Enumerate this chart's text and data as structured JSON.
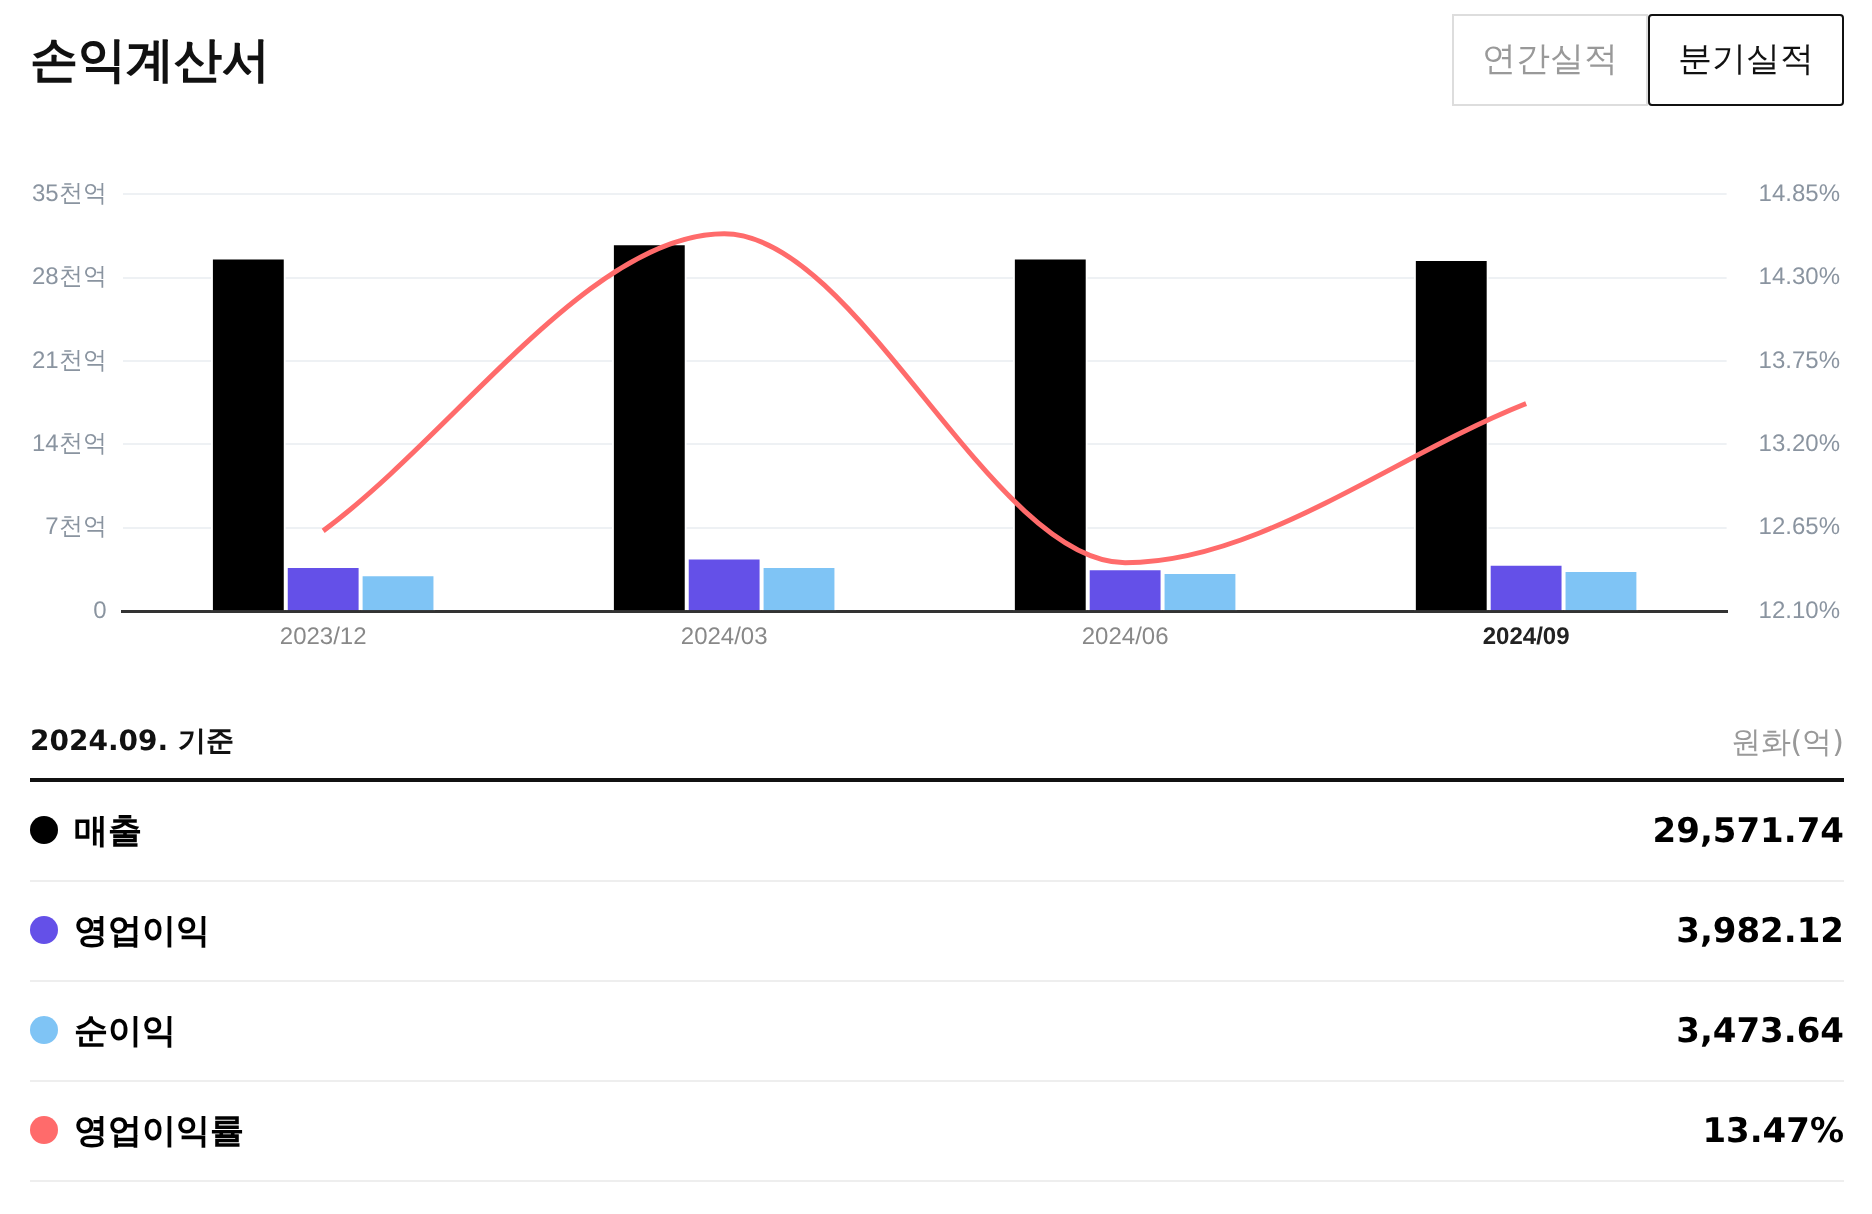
{
  "chart_data": {
    "type": "bar",
    "title": "손익계산서",
    "categories": [
      "2023/12",
      "2024/03",
      "2024/06",
      "2024/09"
    ],
    "series": [
      {
        "name": "매출",
        "color": "#000000",
        "values": [
          29.7,
          30.9,
          29.7,
          29.57
        ]
      },
      {
        "name": "영업이익",
        "color": "#6450e8",
        "values": [
          3.8,
          4.5,
          3.6,
          3.98
        ]
      },
      {
        "name": "순이익",
        "color": "#7fc4f5",
        "values": [
          3.1,
          3.8,
          3.3,
          3.47
        ]
      },
      {
        "name": "영업이익률",
        "type": "line",
        "axis": "y2",
        "color": "#ff6b6b",
        "values": [
          12.63,
          14.59,
          12.42,
          13.47
        ]
      }
    ],
    "ylim": [
      0,
      35
    ],
    "yticks": [
      0,
      {
        "value": 7,
        "label": "7천억"
      },
      {
        "value": 14,
        "label": "14천억"
      },
      {
        "value": 21,
        "label": "21천억"
      },
      {
        "value": 28,
        "label": "28천억"
      },
      {
        "value": 35,
        "label": "35천억"
      }
    ],
    "y2lim": [
      12.1,
      14.85
    ],
    "y2ticks": [
      {
        "value": 12.1,
        "label": "12.10%"
      },
      {
        "value": 12.65,
        "label": "12.65%"
      },
      {
        "value": 13.2,
        "label": "13.20%"
      },
      {
        "value": 13.75,
        "label": "13.75%"
      },
      {
        "value": 14.3,
        "label": "14.30%"
      },
      {
        "value": 14.85,
        "label": "14.85%"
      }
    ],
    "grid": "y",
    "legend": "bottom",
    "marker": "none",
    "line_style": "solid",
    "annotations": [
      "2024.09. 기준",
      "원화(억)",
      "29,571.74",
      "3,982.12",
      "3,473.64",
      "13.47%",
      "연간실적",
      "분기실적"
    ]
  }
}
